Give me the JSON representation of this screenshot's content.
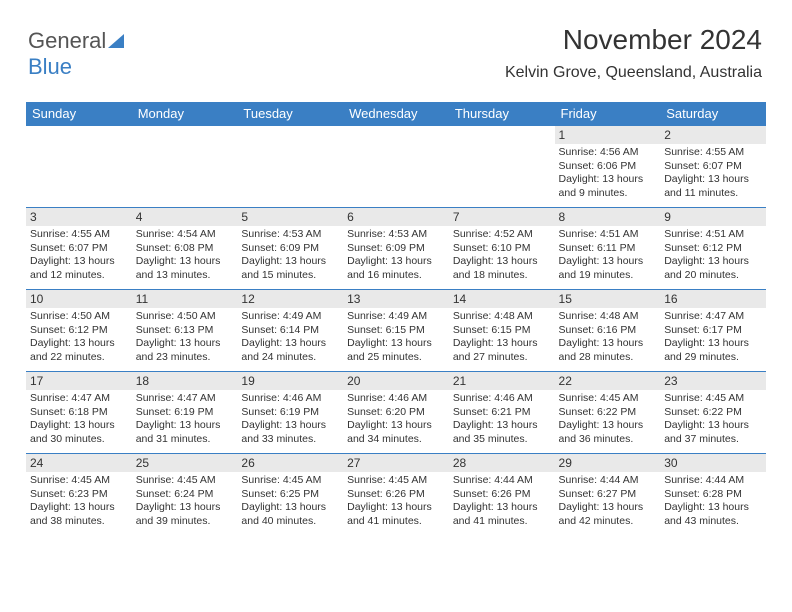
{
  "logo": {
    "text1": "General",
    "text2": "Blue",
    "icon_color": "#3a7fc4"
  },
  "header": {
    "title": "November 2024",
    "location": "Kelvin Grove, Queensland, Australia"
  },
  "calendar": {
    "type": "table",
    "header_bg": "#3a7fc4",
    "header_fg": "#ffffff",
    "cell_border": "#3a7fc4",
    "daynum_bg": "#e9e9e9",
    "text_color": "#333333",
    "font_size_header": 13,
    "font_size_daynum": 12,
    "font_size_body": 10.5,
    "columns": [
      "Sunday",
      "Monday",
      "Tuesday",
      "Wednesday",
      "Thursday",
      "Friday",
      "Saturday"
    ],
    "weeks": [
      [
        null,
        null,
        null,
        null,
        null,
        {
          "n": "1",
          "sr": "4:56 AM",
          "ss": "6:06 PM",
          "dl": "13 hours and 9 minutes."
        },
        {
          "n": "2",
          "sr": "4:55 AM",
          "ss": "6:07 PM",
          "dl": "13 hours and 11 minutes."
        }
      ],
      [
        {
          "n": "3",
          "sr": "4:55 AM",
          "ss": "6:07 PM",
          "dl": "13 hours and 12 minutes."
        },
        {
          "n": "4",
          "sr": "4:54 AM",
          "ss": "6:08 PM",
          "dl": "13 hours and 13 minutes."
        },
        {
          "n": "5",
          "sr": "4:53 AM",
          "ss": "6:09 PM",
          "dl": "13 hours and 15 minutes."
        },
        {
          "n": "6",
          "sr": "4:53 AM",
          "ss": "6:09 PM",
          "dl": "13 hours and 16 minutes."
        },
        {
          "n": "7",
          "sr": "4:52 AM",
          "ss": "6:10 PM",
          "dl": "13 hours and 18 minutes."
        },
        {
          "n": "8",
          "sr": "4:51 AM",
          "ss": "6:11 PM",
          "dl": "13 hours and 19 minutes."
        },
        {
          "n": "9",
          "sr": "4:51 AM",
          "ss": "6:12 PM",
          "dl": "13 hours and 20 minutes."
        }
      ],
      [
        {
          "n": "10",
          "sr": "4:50 AM",
          "ss": "6:12 PM",
          "dl": "13 hours and 22 minutes."
        },
        {
          "n": "11",
          "sr": "4:50 AM",
          "ss": "6:13 PM",
          "dl": "13 hours and 23 minutes."
        },
        {
          "n": "12",
          "sr": "4:49 AM",
          "ss": "6:14 PM",
          "dl": "13 hours and 24 minutes."
        },
        {
          "n": "13",
          "sr": "4:49 AM",
          "ss": "6:15 PM",
          "dl": "13 hours and 25 minutes."
        },
        {
          "n": "14",
          "sr": "4:48 AM",
          "ss": "6:15 PM",
          "dl": "13 hours and 27 minutes."
        },
        {
          "n": "15",
          "sr": "4:48 AM",
          "ss": "6:16 PM",
          "dl": "13 hours and 28 minutes."
        },
        {
          "n": "16",
          "sr": "4:47 AM",
          "ss": "6:17 PM",
          "dl": "13 hours and 29 minutes."
        }
      ],
      [
        {
          "n": "17",
          "sr": "4:47 AM",
          "ss": "6:18 PM",
          "dl": "13 hours and 30 minutes."
        },
        {
          "n": "18",
          "sr": "4:47 AM",
          "ss": "6:19 PM",
          "dl": "13 hours and 31 minutes."
        },
        {
          "n": "19",
          "sr": "4:46 AM",
          "ss": "6:19 PM",
          "dl": "13 hours and 33 minutes."
        },
        {
          "n": "20",
          "sr": "4:46 AM",
          "ss": "6:20 PM",
          "dl": "13 hours and 34 minutes."
        },
        {
          "n": "21",
          "sr": "4:46 AM",
          "ss": "6:21 PM",
          "dl": "13 hours and 35 minutes."
        },
        {
          "n": "22",
          "sr": "4:45 AM",
          "ss": "6:22 PM",
          "dl": "13 hours and 36 minutes."
        },
        {
          "n": "23",
          "sr": "4:45 AM",
          "ss": "6:22 PM",
          "dl": "13 hours and 37 minutes."
        }
      ],
      [
        {
          "n": "24",
          "sr": "4:45 AM",
          "ss": "6:23 PM",
          "dl": "13 hours and 38 minutes."
        },
        {
          "n": "25",
          "sr": "4:45 AM",
          "ss": "6:24 PM",
          "dl": "13 hours and 39 minutes."
        },
        {
          "n": "26",
          "sr": "4:45 AM",
          "ss": "6:25 PM",
          "dl": "13 hours and 40 minutes."
        },
        {
          "n": "27",
          "sr": "4:45 AM",
          "ss": "6:26 PM",
          "dl": "13 hours and 41 minutes."
        },
        {
          "n": "28",
          "sr": "4:44 AM",
          "ss": "6:26 PM",
          "dl": "13 hours and 41 minutes."
        },
        {
          "n": "29",
          "sr": "4:44 AM",
          "ss": "6:27 PM",
          "dl": "13 hours and 42 minutes."
        },
        {
          "n": "30",
          "sr": "4:44 AM",
          "ss": "6:28 PM",
          "dl": "13 hours and 43 minutes."
        }
      ]
    ],
    "labels": {
      "sunrise": "Sunrise:",
      "sunset": "Sunset:",
      "daylight": "Daylight:"
    }
  }
}
